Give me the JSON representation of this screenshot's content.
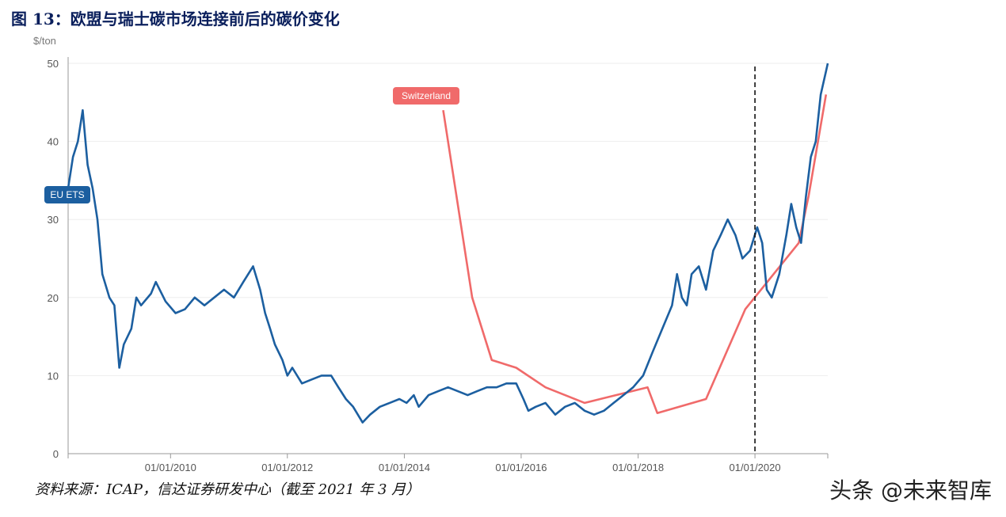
{
  "figure_title": "图 13：欧盟与瑞士碳市场连接前后的碳价变化",
  "source_note": "资料来源：ICAP，信达证券研发中心（截至 2021 年 3 月）",
  "watermark": "头条 @未来智库",
  "colors": {
    "eu": "#1c5fa0",
    "switzerland": "#f06a6a",
    "axis": "#999999",
    "grid": "#eeeeee"
  },
  "chart_data": {
    "type": "line",
    "title": "",
    "xlabel": "",
    "ylabel": "$/ton",
    "xlim": [
      "2008-04-01",
      "2021-03-31"
    ],
    "ylim": [
      0,
      50
    ],
    "yticks": [
      0,
      10,
      20,
      30,
      40,
      50
    ],
    "xticks": [
      "01/01/2010",
      "01/01/2012",
      "01/01/2014",
      "01/01/2016",
      "01/01/2018",
      "01/01/2020"
    ],
    "grid": true,
    "legend": "inline labels",
    "annotations": [
      {
        "type": "vertical-dashed-line",
        "x": "2020-01-01"
      }
    ],
    "series": [
      {
        "name": "EU ETS",
        "points": [
          [
            "2008-04-01",
            34
          ],
          [
            "2008-05-01",
            38
          ],
          [
            "2008-06-01",
            40
          ],
          [
            "2008-07-01",
            44
          ],
          [
            "2008-08-01",
            37
          ],
          [
            "2008-09-01",
            34
          ],
          [
            "2008-10-01",
            30
          ],
          [
            "2008-11-01",
            23
          ],
          [
            "2008-12-15",
            20
          ],
          [
            "2009-01-15",
            19
          ],
          [
            "2009-02-15",
            11
          ],
          [
            "2009-03-15",
            14
          ],
          [
            "2009-05-01",
            16
          ],
          [
            "2009-06-01",
            20
          ],
          [
            "2009-07-01",
            19
          ],
          [
            "2009-09-01",
            20.5
          ],
          [
            "2009-10-01",
            22
          ],
          [
            "2009-12-01",
            19.5
          ],
          [
            "2010-02-01",
            18
          ],
          [
            "2010-04-01",
            18.5
          ],
          [
            "2010-06-01",
            20
          ],
          [
            "2010-08-01",
            19
          ],
          [
            "2010-10-01",
            20
          ],
          [
            "2010-12-01",
            21
          ],
          [
            "2011-02-01",
            20
          ],
          [
            "2011-04-01",
            22
          ],
          [
            "2011-06-01",
            24
          ],
          [
            "2011-07-15",
            21
          ],
          [
            "2011-08-15",
            18
          ],
          [
            "2011-09-15",
            16
          ],
          [
            "2011-10-15",
            14
          ],
          [
            "2011-12-01",
            12
          ],
          [
            "2012-01-01",
            10
          ],
          [
            "2012-02-01",
            11
          ],
          [
            "2012-04-01",
            9
          ],
          [
            "2012-06-01",
            9.5
          ],
          [
            "2012-08-01",
            10
          ],
          [
            "2012-10-01",
            10
          ],
          [
            "2012-11-15",
            8.5
          ],
          [
            "2013-01-01",
            7
          ],
          [
            "2013-02-15",
            6
          ],
          [
            "2013-04-15",
            4
          ],
          [
            "2013-06-01",
            5
          ],
          [
            "2013-08-01",
            6
          ],
          [
            "2013-10-01",
            6.5
          ],
          [
            "2013-12-01",
            7
          ],
          [
            "2014-01-15",
            6.5
          ],
          [
            "2014-03-01",
            7.5
          ],
          [
            "2014-04-01",
            6
          ],
          [
            "2014-06-01",
            7.5
          ],
          [
            "2014-08-01",
            8
          ],
          [
            "2014-10-01",
            8.5
          ],
          [
            "2014-12-01",
            8
          ],
          [
            "2015-02-01",
            7.5
          ],
          [
            "2015-04-01",
            8
          ],
          [
            "2015-06-01",
            8.5
          ],
          [
            "2015-08-01",
            8.5
          ],
          [
            "2015-10-01",
            9
          ],
          [
            "2015-12-01",
            9
          ],
          [
            "2016-01-15",
            7
          ],
          [
            "2016-02-15",
            5.5
          ],
          [
            "2016-04-01",
            6
          ],
          [
            "2016-06-01",
            6.5
          ],
          [
            "2016-08-01",
            5
          ],
          [
            "2016-10-01",
            6
          ],
          [
            "2016-12-01",
            6.5
          ],
          [
            "2017-02-01",
            5.5
          ],
          [
            "2017-04-01",
            5
          ],
          [
            "2017-06-01",
            5.5
          ],
          [
            "2017-08-01",
            6.5
          ],
          [
            "2017-10-01",
            7.5
          ],
          [
            "2017-12-01",
            8.5
          ],
          [
            "2018-02-01",
            10
          ],
          [
            "2018-04-01",
            13
          ],
          [
            "2018-06-01",
            16
          ],
          [
            "2018-08-01",
            19
          ],
          [
            "2018-09-01",
            23
          ],
          [
            "2018-10-01",
            20
          ],
          [
            "2018-11-01",
            19
          ],
          [
            "2018-12-01",
            23
          ],
          [
            "2019-01-15",
            24
          ],
          [
            "2019-03-01",
            21
          ],
          [
            "2019-04-15",
            26
          ],
          [
            "2019-06-01",
            28
          ],
          [
            "2019-07-15",
            30
          ],
          [
            "2019-09-01",
            28
          ],
          [
            "2019-10-15",
            25
          ],
          [
            "2019-12-01",
            26
          ],
          [
            "2020-01-15",
            29
          ],
          [
            "2020-02-15",
            27
          ],
          [
            "2020-03-15",
            21
          ],
          [
            "2020-04-15",
            20
          ],
          [
            "2020-06-01",
            23
          ],
          [
            "2020-07-15",
            28
          ],
          [
            "2020-08-15",
            32
          ],
          [
            "2020-09-15",
            29
          ],
          [
            "2020-10-15",
            27
          ],
          [
            "2020-11-15",
            33
          ],
          [
            "2020-12-15",
            38
          ],
          [
            "2021-01-15",
            40
          ],
          [
            "2021-02-15",
            46
          ],
          [
            "2021-03-20",
            49
          ],
          [
            "2021-03-31",
            50
          ]
        ]
      },
      {
        "name": "Switzerland",
        "points": [
          [
            "2014-09-01",
            44
          ],
          [
            "2015-03-01",
            20
          ],
          [
            "2015-07-01",
            12
          ],
          [
            "2015-12-01",
            11
          ],
          [
            "2016-06-01",
            8.5
          ],
          [
            "2017-02-01",
            6.5
          ],
          [
            "2018-03-01",
            8.5
          ],
          [
            "2018-05-01",
            5.2
          ],
          [
            "2019-03-01",
            7
          ],
          [
            "2019-11-01",
            18.5
          ],
          [
            "2020-10-01",
            27
          ],
          [
            "2020-12-01",
            33
          ],
          [
            "2021-03-20",
            46
          ]
        ]
      }
    ]
  }
}
